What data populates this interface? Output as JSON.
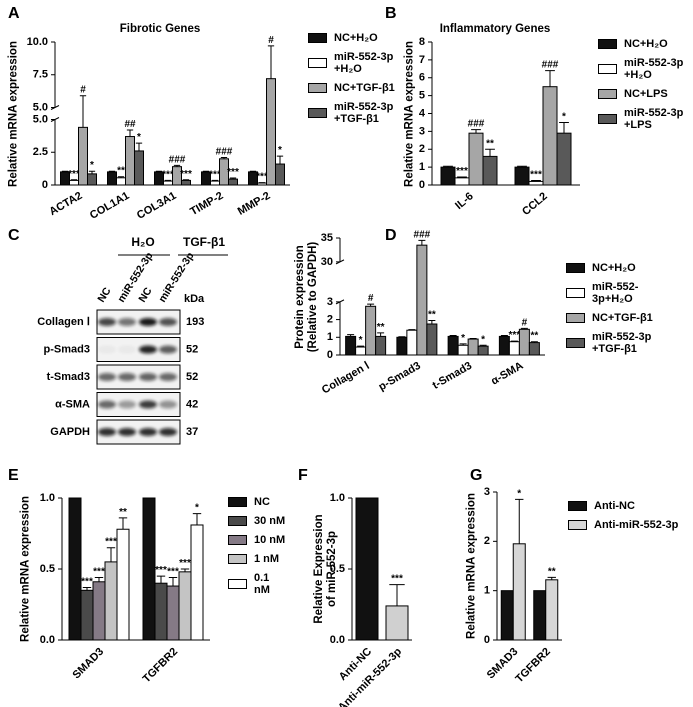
{
  "chart_data": [
    {
      "panel": "A",
      "type": "bar",
      "title": "Fibrotic Genes",
      "y_label": "Relative mRNA expression",
      "categories": [
        "ACTA2",
        "COL1A1",
        "COL3A1",
        "TIMP-2",
        "MMP-2"
      ],
      "series": [
        {
          "name": "NC+H₂O",
          "color": "#111111",
          "values": [
            1,
            1,
            1,
            1,
            1
          ],
          "errors": [
            0.05,
            0.05,
            0.05,
            0.05,
            0.05
          ],
          "significance": [
            null,
            null,
            null,
            null,
            null
          ]
        },
        {
          "name": "miR-552-3p +H₂O",
          "color": "#ffffff",
          "values": [
            0.35,
            0.55,
            0.3,
            0.3,
            0.15
          ],
          "errors": [
            0.05,
            0.08,
            0.05,
            0.05,
            0.03
          ],
          "significance": [
            "***",
            "**",
            "***",
            "***",
            "***"
          ]
        },
        {
          "name": "NC+TGF-β1",
          "color": "#a6a6a6",
          "values": [
            4.4,
            3.7,
            1.4,
            2.0,
            7.2
          ],
          "errors": [
            1.5,
            0.5,
            0.1,
            0.1,
            2.5
          ],
          "significance": [
            "#",
            "##",
            "###",
            "###",
            "#"
          ]
        },
        {
          "name": "miR-552-3p +TGF-β1",
          "color": "#595959",
          "values": [
            0.85,
            2.6,
            0.35,
            0.45,
            1.6
          ],
          "errors": [
            0.2,
            0.6,
            0.05,
            0.08,
            0.6
          ],
          "significance": [
            "*",
            "*",
            "***",
            "***",
            "*"
          ]
        }
      ],
      "ylim": [
        0,
        10
      ],
      "axis_break": [
        5,
        5
      ],
      "yticks": [
        0,
        2.5,
        {
          "value": 5,
          "label": "5.0"
        },
        {
          "value": 5,
          "label": "5.0"
        },
        7.5,
        {
          "value": 10,
          "label": "10.0"
        }
      ]
    },
    {
      "panel": "B",
      "type": "bar",
      "title": "Inflammatory Genes",
      "y_label": "Relative mRNA expression",
      "categories": [
        "IL-6",
        "CCL2"
      ],
      "series": [
        {
          "name": "NC+H₂O",
          "color": "#111111",
          "values": [
            1,
            1
          ],
          "errors": [
            0.05,
            0.05
          ],
          "significance": [
            null,
            null
          ]
        },
        {
          "name": "miR-552-3p +H₂O",
          "color": "#ffffff",
          "values": [
            0.4,
            0.2
          ],
          "errors": [
            0.05,
            0.05
          ],
          "significance": [
            "***",
            "***"
          ]
        },
        {
          "name": "NC+LPS",
          "color": "#a6a6a6",
          "values": [
            2.9,
            5.5
          ],
          "errors": [
            0.2,
            0.9
          ],
          "significance": [
            "###",
            "###"
          ]
        },
        {
          "name": "miR-552-3p +LPS",
          "color": "#595959",
          "values": [
            1.6,
            2.9
          ],
          "errors": [
            0.4,
            0.6
          ],
          "significance": [
            "**",
            "*"
          ]
        }
      ],
      "ylim": [
        0,
        8
      ],
      "yticks": [
        0,
        1,
        2,
        3,
        4,
        5,
        6,
        7,
        8
      ]
    },
    {
      "panel": "D",
      "type": "bar",
      "y_label": "Protein expression (Relative to GAPDH)",
      "categories": [
        "Collagen Ⅰ",
        "p-Smad3",
        "t-Smad3",
        "α-SMA"
      ],
      "series": [
        {
          "name": "NC+H₂O",
          "color": "#111111",
          "values": [
            1.05,
            1.0,
            1.05,
            1.05
          ],
          "errors": [
            0.1,
            0.03,
            0.05,
            0.05
          ],
          "significance": [
            null,
            null,
            null,
            null
          ]
        },
        {
          "name": "miR-552-3p+H₂O",
          "color": "#ffffff",
          "values": [
            0.45,
            1.4,
            0.55,
            0.75
          ],
          "errors": [
            0.05,
            0.03,
            0.08,
            0.03
          ],
          "significance": [
            "*",
            null,
            "*",
            "***"
          ]
        },
        {
          "name": "NC+TGF-β1",
          "color": "#a6a6a6",
          "values": [
            2.75,
            33.5,
            0.9,
            1.45
          ],
          "errors": [
            0.12,
            1.0,
            0.03,
            0.05
          ],
          "significance": [
            "#",
            "###",
            null,
            "#"
          ]
        },
        {
          "name": "miR-552-3p +TGF-β1",
          "color": "#595959",
          "values": [
            1.05,
            1.75,
            0.5,
            0.7
          ],
          "errors": [
            0.2,
            0.2,
            0.05,
            0.05
          ],
          "significance": [
            "**",
            "**",
            "*",
            "**"
          ]
        }
      ],
      "ylim": [
        0,
        35
      ],
      "axis_break": [
        3,
        30
      ],
      "yticks": [
        0,
        1,
        2,
        3,
        30,
        35
      ]
    },
    {
      "panel": "E",
      "type": "bar",
      "y_label": "Relative mRNA expression",
      "categories": [
        "SMAD3",
        "TGFBR2"
      ],
      "series": [
        {
          "name": "NC",
          "color": "#111111",
          "values": [
            1,
            1
          ],
          "errors": [
            null,
            null
          ],
          "significance": [
            null,
            null
          ]
        },
        {
          "name": "30 nM",
          "color": "#4a4a4a",
          "values": [
            0.35,
            0.4
          ],
          "errors": [
            0.02,
            0.05
          ],
          "significance": [
            "***",
            "***"
          ]
        },
        {
          "name": "10 nM",
          "color": "#857a86",
          "values": [
            0.41,
            0.38
          ],
          "errors": [
            0.03,
            0.06
          ],
          "significance": [
            "***",
            "***"
          ]
        },
        {
          "name": "1 nM",
          "color": "#c4c4c4",
          "values": [
            0.55,
            0.48
          ],
          "errors": [
            0.1,
            0.02
          ],
          "significance": [
            "***",
            "***"
          ]
        },
        {
          "name": "0.1 nM",
          "color": "#ffffff",
          "values": [
            0.78,
            0.81
          ],
          "errors": [
            0.08,
            0.08
          ],
          "significance": [
            "**",
            "*"
          ]
        }
      ],
      "ylim": [
        0,
        1
      ],
      "yticks": [
        {
          "value": 0,
          "label": "0.0"
        },
        0.5,
        {
          "value": 1,
          "label": "1.0"
        }
      ]
    },
    {
      "panel": "F",
      "type": "bar",
      "y_label": "Relative Expression of miR-552-3p",
      "categories": [
        "Anti-NC",
        "Anti-miR-552-3p"
      ],
      "values": [
        1,
        0.24
      ],
      "errors": [
        null,
        0.15
      ],
      "colors": [
        "#111111",
        "#d0d0d0"
      ],
      "significance": [
        null,
        "***"
      ],
      "ylim": [
        0,
        1
      ],
      "yticks": [
        {
          "value": 0,
          "label": "0.0"
        },
        0.5,
        {
          "value": 1,
          "label": "1.0"
        }
      ]
    },
    {
      "panel": "G",
      "type": "bar",
      "y_label": "Relative mRNA expression",
      "categories": [
        "SMAD3",
        "TGFBR2"
      ],
      "series": [
        {
          "name": "Anti-NC",
          "color": "#111111",
          "values": [
            1,
            1
          ],
          "errors": [
            null,
            null
          ],
          "significance": [
            null,
            null
          ]
        },
        {
          "name": "Anti-miR-552-3p",
          "color": "#d6d6d6",
          "values": [
            1.95,
            1.22
          ],
          "errors": [
            0.9,
            0.05
          ],
          "significance": [
            "*",
            "**"
          ]
        }
      ],
      "ylim": [
        0,
        3
      ],
      "yticks": [
        0,
        1,
        2,
        3
      ]
    }
  ],
  "blot": {
    "panel": "C",
    "groups": [
      "H₂O",
      "TGF-β1"
    ],
    "lanes": [
      "NC",
      "miR-552-3p",
      "NC",
      "miR-552-3p"
    ],
    "unit": "kDa",
    "rows": [
      {
        "protein": "Collagen Ⅰ",
        "kda": 193
      },
      {
        "protein": "p-Smad3",
        "kda": 52
      },
      {
        "protein": "t-Smad3",
        "kda": 52
      },
      {
        "protein": "α-SMA",
        "kda": 42
      },
      {
        "protein": "GAPDH",
        "kda": 37
      }
    ]
  }
}
